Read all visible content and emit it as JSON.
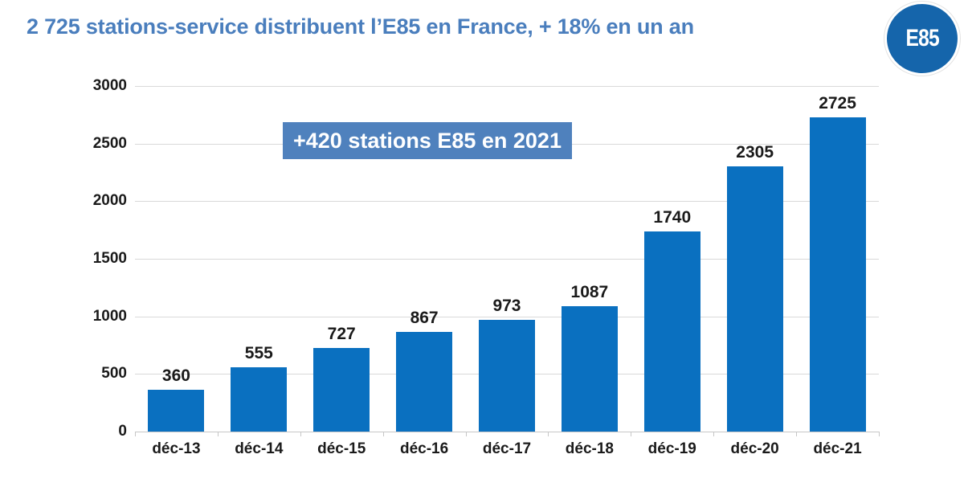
{
  "header": {
    "title": "2 725 stations-service distribuent l’E85 en France, + 18% en un an",
    "title_color": "#4a7ebd"
  },
  "badge": {
    "label": "E85",
    "bg_color": "#1565ab"
  },
  "annotation": {
    "text": "+420 stations E85 en 2021",
    "bg_color": "#4f81bd"
  },
  "chart_data": {
    "type": "bar",
    "title": "2 725 stations-service distribuent l’E85 en France, + 18% en un an",
    "categories": [
      "déc-13",
      "déc-14",
      "déc-15",
      "déc-16",
      "déc-17",
      "déc-18",
      "déc-19",
      "déc-20",
      "déc-21"
    ],
    "values": [
      360,
      555,
      727,
      867,
      973,
      1087,
      1740,
      2305,
      2725
    ],
    "xlabel": "",
    "ylabel": "",
    "ylim": [
      0,
      3000
    ],
    "yticks": [
      0,
      500,
      1000,
      1500,
      2000,
      2500,
      3000
    ],
    "grid": true,
    "legend": false,
    "value_labels": true,
    "bar_color": "#0a70c0",
    "gridline_color": "#d9d9d9",
    "annotation": "+420 stations E85 en 2021"
  }
}
